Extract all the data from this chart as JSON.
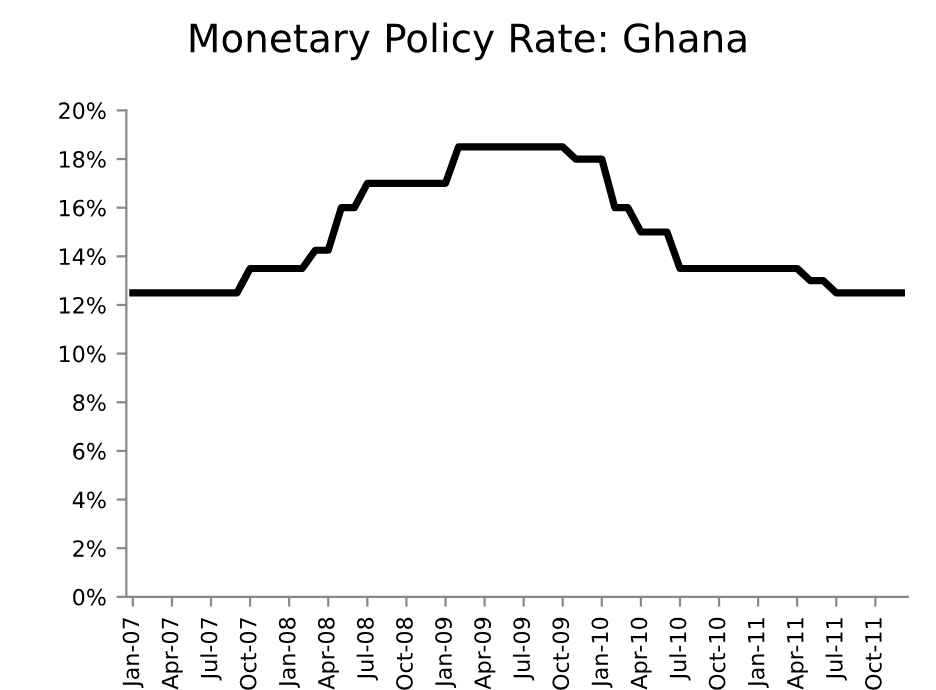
{
  "chart_data": {
    "type": "line",
    "title": "Monetary Policy Rate: Ghana",
    "categories": [
      "Jan-07",
      null,
      null,
      "Apr-07",
      null,
      null,
      "Jul-07",
      null,
      null,
      "Oct-07",
      null,
      null,
      "Jan-08",
      null,
      null,
      "Apr-08",
      null,
      null,
      "Jul-08",
      null,
      null,
      "Oct-08",
      null,
      null,
      "Jan-09",
      null,
      null,
      "Apr-09",
      null,
      null,
      "Jul-09",
      null,
      null,
      "Oct-09",
      null,
      null,
      "Jan-10",
      null,
      null,
      "Apr-10",
      null,
      null,
      "Jul-10",
      null,
      null,
      "Oct-10",
      null,
      null,
      "Jan-11",
      null,
      null,
      "Apr-11",
      null,
      null,
      "Jul-11",
      null,
      null,
      "Oct-11",
      null,
      null
    ],
    "series": [
      {
        "color": "#000000",
        "values": [
          12.5,
          12.5,
          12.5,
          12.5,
          12.5,
          12.5,
          12.5,
          12.5,
          12.5,
          13.5,
          13.5,
          13.5,
          13.5,
          13.5,
          14.25,
          14.25,
          16,
          16,
          17,
          17,
          17,
          17,
          17,
          17,
          17,
          18.5,
          18.5,
          18.5,
          18.5,
          18.5,
          18.5,
          18.5,
          18.5,
          18.5,
          18,
          18,
          18,
          16,
          16,
          15,
          15,
          15,
          13.5,
          13.5,
          13.5,
          13.5,
          13.5,
          13.5,
          13.5,
          13.5,
          13.5,
          13.5,
          13,
          13,
          12.5,
          12.5,
          12.5,
          12.5,
          12.5,
          12.5
        ]
      }
    ],
    "ylim": [
      0,
      20
    ],
    "yticks": [
      {
        "value": 0,
        "label": "0%"
      },
      {
        "value": 2,
        "label": "2%"
      },
      {
        "value": 4,
        "label": "4%"
      },
      {
        "value": 6,
        "label": "6%"
      },
      {
        "value": 8,
        "label": "8%"
      },
      {
        "value": 10,
        "label": "10%"
      },
      {
        "value": 12,
        "label": "12%"
      },
      {
        "value": 14,
        "label": "14%"
      },
      {
        "value": 16,
        "label": "16%"
      },
      {
        "value": 18,
        "label": "18%"
      },
      {
        "value": 20,
        "label": "20%"
      }
    ],
    "grid": false,
    "legend": false,
    "line_style": "solid",
    "marker": "none"
  }
}
